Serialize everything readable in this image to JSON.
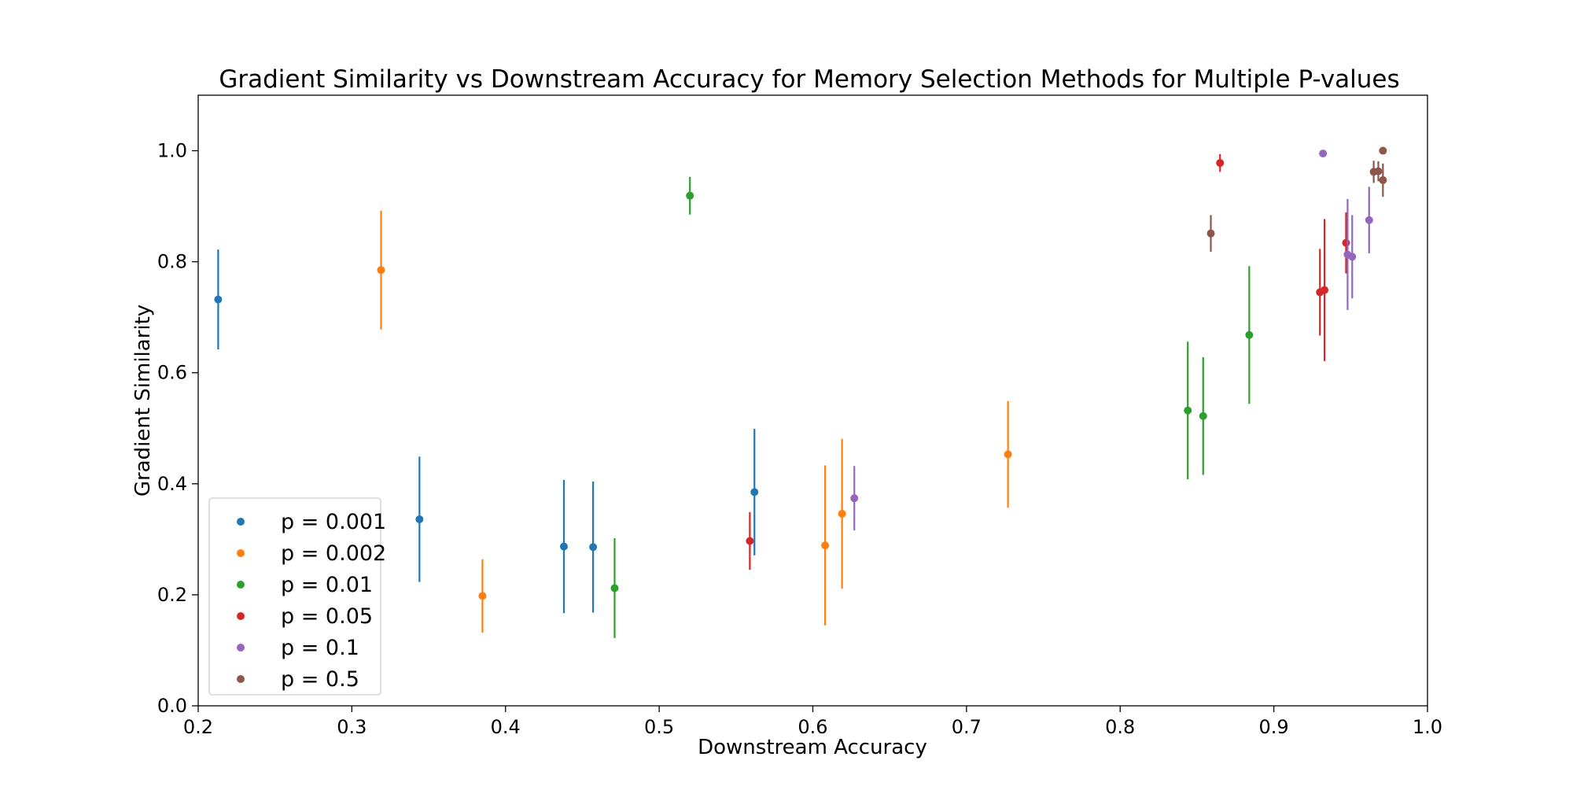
{
  "chart_data": {
    "type": "scatter",
    "title": "Gradient Similarity vs Downstream Accuracy for Memory Selection Methods for Multiple P-values",
    "xlabel": "Downstream Accuracy",
    "ylabel": "Gradient Similarity",
    "xlim": [
      0.2,
      1.0
    ],
    "ylim": [
      0.0,
      1.1
    ],
    "xticks": [
      "0.2",
      "0.3",
      "0.4",
      "0.5",
      "0.6",
      "0.7",
      "0.8",
      "0.9",
      "1.0"
    ],
    "yticks": [
      "0.0",
      "0.2",
      "0.4",
      "0.6",
      "0.8",
      "1.0"
    ],
    "grid": false,
    "legend_position": "lower-left",
    "error_bars": true,
    "series": [
      {
        "name": "p = 0.001",
        "color": "#1f77b4",
        "points": [
          {
            "x": 0.213,
            "y": 0.732,
            "err": 0.09
          },
          {
            "x": 0.344,
            "y": 0.336,
            "err": 0.113
          },
          {
            "x": 0.438,
            "y": 0.287,
            "err": 0.12
          },
          {
            "x": 0.457,
            "y": 0.286,
            "err": 0.118
          },
          {
            "x": 0.562,
            "y": 0.385,
            "err": 0.114
          }
        ]
      },
      {
        "name": "p = 0.002",
        "color": "#ff7f0e",
        "points": [
          {
            "x": 0.319,
            "y": 0.785,
            "err": 0.107
          },
          {
            "x": 0.385,
            "y": 0.198,
            "err": 0.066
          },
          {
            "x": 0.608,
            "y": 0.289,
            "err": 0.144
          },
          {
            "x": 0.619,
            "y": 0.346,
            "err": 0.135
          },
          {
            "x": 0.727,
            "y": 0.453,
            "err": 0.096
          }
        ]
      },
      {
        "name": "p = 0.01",
        "color": "#2ca02c",
        "points": [
          {
            "x": 0.471,
            "y": 0.212,
            "err": 0.09
          },
          {
            "x": 0.52,
            "y": 0.919,
            "err": 0.034
          },
          {
            "x": 0.844,
            "y": 0.532,
            "err": 0.124
          },
          {
            "x": 0.854,
            "y": 0.522,
            "err": 0.106
          },
          {
            "x": 0.884,
            "y": 0.668,
            "err": 0.124
          }
        ]
      },
      {
        "name": "p = 0.05",
        "color": "#d62728",
        "points": [
          {
            "x": 0.559,
            "y": 0.297,
            "err": 0.052
          },
          {
            "x": 0.865,
            "y": 0.978,
            "err": 0.016
          },
          {
            "x": 0.93,
            "y": 0.745,
            "err": 0.078
          },
          {
            "x": 0.933,
            "y": 0.749,
            "err": 0.128
          },
          {
            "x": 0.947,
            "y": 0.834,
            "err": 0.055
          }
        ]
      },
      {
        "name": "p = 0.1",
        "color": "#9467bd",
        "points": [
          {
            "x": 0.627,
            "y": 0.374,
            "err": 0.058
          },
          {
            "x": 0.932,
            "y": 0.995,
            "err": 0.003
          },
          {
            "x": 0.948,
            "y": 0.813,
            "err": 0.1
          },
          {
            "x": 0.951,
            "y": 0.809,
            "err": 0.075
          },
          {
            "x": 0.962,
            "y": 0.875,
            "err": 0.06
          }
        ]
      },
      {
        "name": "p = 0.5",
        "color": "#8c564b",
        "points": [
          {
            "x": 0.859,
            "y": 0.851,
            "err": 0.033
          },
          {
            "x": 0.965,
            "y": 0.962,
            "err": 0.02
          },
          {
            "x": 0.968,
            "y": 0.963,
            "err": 0.018
          },
          {
            "x": 0.971,
            "y": 0.947,
            "err": 0.03
          },
          {
            "x": 0.971,
            "y": 1.0,
            "err": 0.002
          }
        ]
      }
    ]
  }
}
